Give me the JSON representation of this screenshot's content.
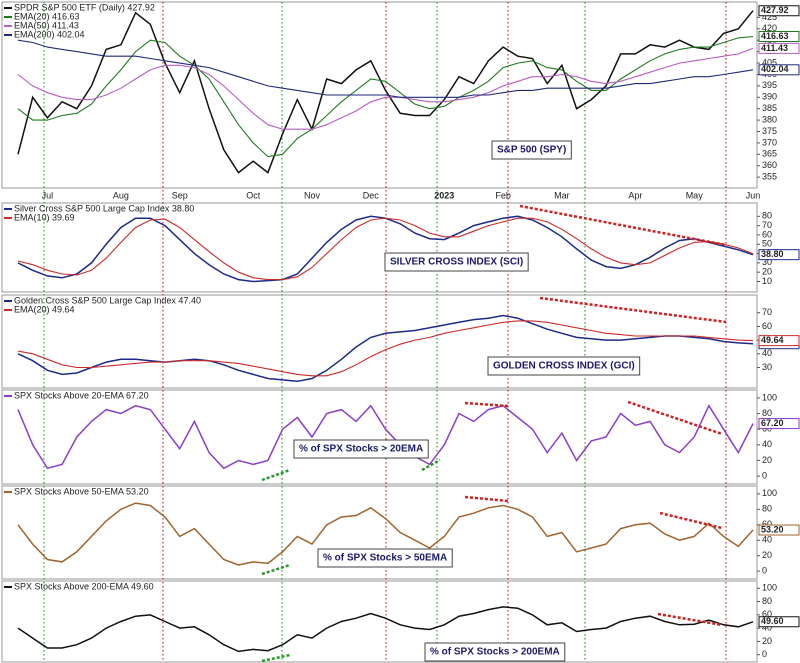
{
  "chart_data": [
    {
      "type": "line",
      "categories": [
        null,
        null,
        "Jul",
        null,
        null,
        null,
        null,
        "Aug",
        null,
        null,
        null,
        "Sep",
        null,
        null,
        null,
        null,
        "Oct",
        null,
        null,
        null,
        "Nov",
        null,
        null,
        null,
        "Dec",
        null,
        null,
        null,
        null,
        "2023",
        null,
        null,
        null,
        "Feb",
        null,
        null,
        null,
        "Mar",
        null,
        null,
        null,
        null,
        "Apr",
        null,
        null,
        null,
        "May",
        null,
        null,
        null,
        "Jun"
      ],
      "annotation": "S&P 500 (SPY)",
      "ylim": [
        352,
        430
      ],
      "yticks": [
        355,
        360,
        365,
        370,
        375,
        380,
        385,
        390,
        395,
        400,
        405,
        410,
        415,
        420,
        425
      ],
      "series": [
        {
          "name": "SPDR S&P 500 ETF (Daily) 427.92",
          "color": "#111111",
          "end_label": "427.92",
          "values": [
            365,
            390,
            381,
            388,
            385,
            395,
            411,
            413,
            427,
            422,
            405,
            392,
            406,
            385,
            367,
            357,
            362,
            357,
            374,
            389,
            376,
            398,
            396,
            402,
            406,
            393,
            383,
            382,
            382,
            389,
            399,
            396,
            406,
            412,
            408,
            407,
            396,
            404,
            385,
            389,
            395,
            409,
            409,
            413,
            412,
            415,
            412,
            411,
            418,
            420,
            427.92
          ]
        },
        {
          "name": "EMA(20) 416.63",
          "color": "#1f7a1f",
          "end_label": "416.63",
          "values": [
            385,
            380,
            380,
            382,
            383,
            387,
            395,
            402,
            410,
            415,
            414,
            408,
            404,
            398,
            388,
            378,
            370,
            364,
            365,
            372,
            376,
            382,
            388,
            393,
            398,
            397,
            392,
            387,
            385,
            386,
            390,
            393,
            397,
            403,
            405,
            406,
            403,
            402,
            397,
            393,
            393,
            398,
            402,
            406,
            409,
            411,
            412,
            412,
            414,
            416,
            416.63
          ]
        },
        {
          "name": "EMA(50) 411.43",
          "color": "#b55ec0",
          "end_label": "411.43",
          "values": [
            400,
            395,
            392,
            390,
            389,
            389,
            391,
            394,
            398,
            402,
            404,
            404,
            403,
            400,
            395,
            389,
            383,
            378,
            376,
            376,
            376,
            378,
            381,
            384,
            388,
            390,
            390,
            389,
            388,
            388,
            389,
            390,
            392,
            395,
            397,
            399,
            399,
            400,
            399,
            397,
            396,
            397,
            399,
            401,
            403,
            405,
            406,
            407,
            408,
            409,
            411.43
          ]
        },
        {
          "name": "EMA(200) 402.04",
          "color": "#1f2a7a",
          "end_label": "402.04",
          "values": [
            415,
            414,
            412,
            411,
            410,
            409,
            408,
            408,
            408,
            407,
            406,
            405,
            404,
            403,
            401,
            399,
            397,
            395,
            394,
            393,
            392,
            391,
            391,
            391,
            391,
            391,
            390,
            390,
            390,
            390,
            390,
            391,
            391,
            392,
            393,
            393,
            394,
            394,
            394,
            394,
            394,
            395,
            396,
            396,
            397,
            398,
            399,
            399,
            400,
            401,
            402.04
          ]
        }
      ]
    },
    {
      "type": "line",
      "annotation": "SILVER CROSS INDEX (SCI)",
      "ylim": [
        3,
        90
      ],
      "yticks": [
        10,
        20,
        30,
        40,
        50,
        60,
        70,
        80
      ],
      "series": [
        {
          "name": "Silver Cross S&P 500 Large Cap Index 38.80",
          "color": "#1c2a8a",
          "end_label": "38.80",
          "values": [
            30,
            22,
            16,
            14,
            18,
            30,
            50,
            68,
            78,
            78,
            70,
            55,
            40,
            28,
            18,
            12,
            10,
            11,
            12,
            18,
            35,
            52,
            66,
            76,
            80,
            78,
            72,
            62,
            56,
            55,
            62,
            70,
            74,
            78,
            80,
            76,
            68,
            58,
            45,
            33,
            26,
            24,
            28,
            36,
            46,
            54,
            56,
            52,
            48,
            44,
            38.8
          ]
        },
        {
          "name": "EMA(10) 39.69",
          "color": "#cc2a2a",
          "values": [
            32,
            28,
            22,
            18,
            17,
            22,
            35,
            52,
            68,
            76,
            77,
            68,
            55,
            42,
            30,
            20,
            14,
            12,
            12,
            15,
            25,
            40,
            55,
            68,
            76,
            78,
            76,
            70,
            62,
            58,
            58,
            64,
            70,
            74,
            78,
            78,
            74,
            66,
            56,
            45,
            36,
            30,
            28,
            30,
            38,
            46,
            52,
            53,
            50,
            46,
            39.69
          ]
        }
      ]
    },
    {
      "type": "line",
      "annotation": "GOLDEN CROSS INDEX (GCI)",
      "ylim": [
        18,
        80
      ],
      "yticks": [
        30,
        40,
        50,
        60,
        70
      ],
      "series": [
        {
          "name": "Golden Cross S&P 500 Large Cap Index 47.40",
          "color": "#1c2a8a",
          "end_label": "47.40",
          "values": [
            40,
            35,
            28,
            25,
            26,
            30,
            34,
            36,
            36,
            35,
            34,
            35,
            36,
            35,
            32,
            28,
            25,
            22,
            21,
            20,
            22,
            28,
            36,
            45,
            52,
            55,
            56,
            57,
            59,
            61,
            63,
            65,
            66,
            68,
            66,
            62,
            58,
            55,
            52,
            51,
            50,
            50,
            51,
            52,
            53,
            53,
            52,
            51,
            49,
            48,
            47.4
          ]
        },
        {
          "name": "EMA(20) 49.64",
          "color": "#cc2a2a",
          "end_label": "49.64",
          "values": [
            42,
            40,
            36,
            32,
            30,
            30,
            31,
            32,
            33,
            34,
            34,
            35,
            35,
            35,
            34,
            33,
            31,
            29,
            27,
            25,
            24,
            24,
            27,
            32,
            38,
            43,
            47,
            50,
            52,
            55,
            57,
            59,
            61,
            63,
            64,
            64,
            63,
            61,
            59,
            57,
            55,
            54,
            53,
            53,
            53,
            53,
            53,
            52,
            51,
            50,
            49.64
          ]
        }
      ]
    },
    {
      "type": "line",
      "annotation": "% of SPX Stocks > 20EMA",
      "ylim": [
        -5,
        105
      ],
      "yticks": [
        0,
        20,
        40,
        60,
        80,
        100
      ],
      "series": [
        {
          "name": "SPX Stocks Above 20-EMA 67.20",
          "color": "#8a3ec8",
          "end_label": "67.20",
          "values": [
            85,
            40,
            10,
            15,
            50,
            70,
            85,
            80,
            90,
            85,
            60,
            35,
            70,
            30,
            10,
            20,
            15,
            20,
            60,
            75,
            50,
            80,
            85,
            70,
            90,
            60,
            40,
            25,
            15,
            40,
            80,
            70,
            85,
            90,
            75,
            60,
            30,
            55,
            20,
            45,
            50,
            80,
            65,
            70,
            40,
            30,
            50,
            90,
            60,
            30,
            67.2
          ]
        }
      ]
    },
    {
      "type": "line",
      "annotation": "% of SPX Stocks > 50EMA",
      "ylim": [
        -5,
        105
      ],
      "yticks": [
        0,
        20,
        40,
        60,
        80,
        100
      ],
      "series": [
        {
          "name": "SPX Stocks Above 50-EMA 53.20",
          "color": "#a0642c",
          "end_label": "53.20",
          "values": [
            60,
            35,
            15,
            12,
            25,
            45,
            65,
            80,
            88,
            85,
            70,
            45,
            55,
            35,
            15,
            8,
            12,
            10,
            25,
            45,
            35,
            60,
            70,
            72,
            82,
            68,
            50,
            40,
            30,
            45,
            70,
            75,
            82,
            85,
            80,
            70,
            45,
            50,
            25,
            30,
            35,
            55,
            60,
            62,
            48,
            40,
            45,
            62,
            45,
            32,
            53.2
          ]
        }
      ]
    },
    {
      "type": "line",
      "annotation": "% of SPX Stocks > 200EMA",
      "ylim": [
        -5,
        105
      ],
      "yticks": [
        0,
        20,
        40,
        60,
        80,
        100
      ],
      "series": [
        {
          "name": "SPX Stocks Above 200-EMA 49.60",
          "color": "#111111",
          "end_label": "49.60",
          "values": [
            40,
            25,
            10,
            10,
            15,
            25,
            40,
            50,
            58,
            60,
            50,
            40,
            42,
            30,
            15,
            5,
            8,
            6,
            15,
            30,
            25,
            40,
            50,
            55,
            62,
            55,
            45,
            40,
            38,
            45,
            58,
            62,
            68,
            72,
            70,
            60,
            45,
            48,
            35,
            38,
            40,
            50,
            55,
            58,
            50,
            45,
            46,
            52,
            45,
            42,
            49.6
          ]
        }
      ]
    }
  ]
}
